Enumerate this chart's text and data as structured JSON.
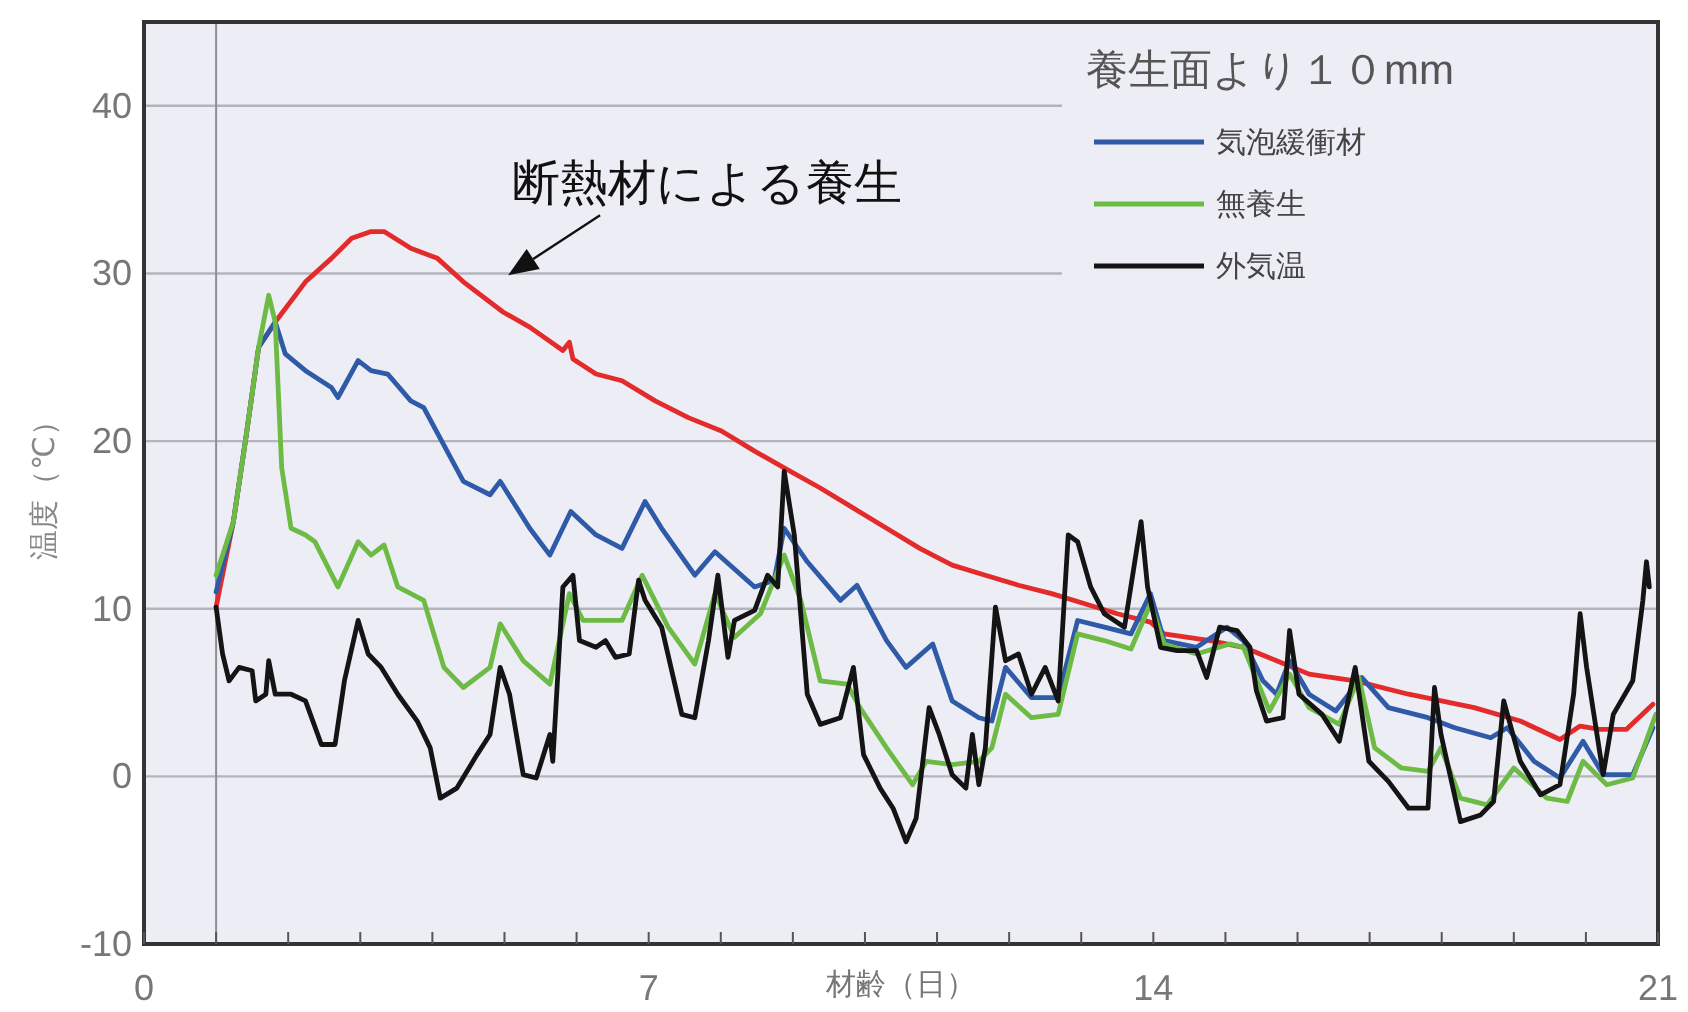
{
  "chart_data": {
    "type": "line",
    "xlabel": "材齢（日）",
    "ylabel": "温度（℃）",
    "legend_title": "養生面より１０mm",
    "annotations": [
      {
        "text": "断熱材による養生",
        "x": 5.05,
        "y": 27.5
      }
    ],
    "xlim": [
      0,
      21
    ],
    "ylim": [
      -10,
      45
    ],
    "xticks": [
      0,
      {
        "value": 1,
        "label": null
      },
      {
        "value": 2,
        "label": null
      },
      {
        "value": 3,
        "label": null
      },
      {
        "value": 4,
        "label": null
      },
      {
        "value": 5,
        "label": null
      },
      {
        "value": 6,
        "label": null
      },
      7,
      {
        "value": 8,
        "label": null
      },
      {
        "value": 9,
        "label": null
      },
      {
        "value": 10,
        "label": null
      },
      {
        "value": 11,
        "label": null
      },
      {
        "value": 12,
        "label": null
      },
      {
        "value": 13,
        "label": null
      },
      14,
      {
        "value": 15,
        "label": null
      },
      {
        "value": 16,
        "label": null
      },
      {
        "value": 17,
        "label": null
      },
      {
        "value": 18,
        "label": null
      },
      {
        "value": 19,
        "label": null
      },
      {
        "value": 20,
        "label": null
      },
      21
    ],
    "yticks": [
      -10,
      0,
      10,
      20,
      30,
      40
    ],
    "grid": "y",
    "legend": "top right",
    "line_style": "solid",
    "ref_lines": [
      {
        "axis": "x",
        "value": 1,
        "color": "#8e8e96"
      }
    ],
    "series": [
      {
        "color": "#e42b2b",
        "x": [
          1.0,
          1.24,
          1.42,
          1.59,
          1.82,
          2.24,
          2.6,
          2.88,
          3.15,
          3.33,
          3.7,
          4.07,
          4.43,
          4.98,
          5.35,
          5.81,
          5.9,
          5.95,
          6.27,
          6.63,
          7.09,
          7.55,
          8.01,
          8.47,
          8.88,
          9.38,
          9.84,
          10.3,
          10.76,
          11.21,
          11.67,
          12.13,
          12.59,
          13.05,
          13.5,
          13.96,
          14.15,
          14.79,
          15.25,
          15.71,
          16.16,
          16.8,
          17.54,
          18.45,
          19.09,
          19.64,
          19.92,
          20.19,
          20.56,
          20.93
        ],
        "values": [
          10.1,
          15.2,
          20.4,
          25.6,
          27.1,
          29.5,
          30.9,
          32.1,
          32.5,
          32.5,
          31.5,
          30.9,
          29.5,
          27.7,
          26.8,
          25.4,
          25.9,
          24.9,
          24.0,
          23.6,
          22.4,
          21.4,
          20.6,
          19.4,
          18.4,
          17.2,
          16.0,
          14.8,
          13.6,
          12.6,
          12.0,
          11.4,
          10.9,
          10.3,
          9.7,
          9.2,
          8.5,
          8.1,
          7.7,
          6.9,
          6.1,
          5.7,
          4.9,
          4.1,
          3.3,
          2.2,
          3.0,
          2.8,
          2.8,
          4.3
        ]
      },
      {
        "name": "気泡緩衝材",
        "color": "#2e5aa8",
        "x": [
          1.0,
          1.24,
          1.42,
          1.59,
          1.82,
          1.96,
          2.24,
          2.6,
          2.69,
          2.97,
          3.15,
          3.38,
          3.7,
          3.88,
          4.43,
          4.8,
          4.94,
          5.35,
          5.63,
          5.92,
          6.27,
          6.63,
          6.95,
          7.18,
          7.64,
          7.92,
          8.47,
          8.74,
          8.88,
          9.2,
          9.66,
          9.89,
          10.3,
          10.57,
          10.94,
          11.21,
          11.58,
          11.76,
          11.95,
          12.31,
          12.68,
          12.95,
          13.32,
          13.69,
          13.96,
          14.15,
          14.6,
          15.02,
          15.25,
          15.52,
          15.71,
          15.89,
          16.16,
          16.53,
          16.89,
          17.26,
          17.81,
          18.18,
          18.68,
          18.91,
          19.28,
          19.64,
          19.96,
          20.24,
          20.65,
          20.93
        ],
        "values": [
          11.0,
          15.2,
          20.4,
          25.6,
          27.1,
          25.2,
          24.2,
          23.2,
          22.6,
          24.8,
          24.2,
          24.0,
          22.4,
          22.0,
          17.6,
          16.8,
          17.6,
          14.8,
          13.2,
          15.8,
          14.4,
          13.6,
          16.4,
          14.8,
          12.0,
          13.4,
          11.3,
          11.7,
          14.8,
          12.8,
          10.5,
          11.4,
          8.1,
          6.5,
          7.9,
          4.5,
          3.5,
          3.3,
          6.5,
          4.7,
          4.7,
          9.3,
          8.9,
          8.5,
          10.9,
          8.1,
          7.7,
          8.9,
          8.1,
          5.7,
          4.9,
          6.9,
          4.9,
          3.9,
          5.9,
          4.1,
          3.5,
          2.9,
          2.3,
          2.9,
          0.9,
          -0.1,
          2.1,
          0.1,
          0.1,
          2.9
        ]
      },
      {
        "name": "無養生",
        "color": "#6dbb45",
        "x": [
          1.0,
          1.24,
          1.42,
          1.59,
          1.73,
          1.82,
          1.91,
          2.04,
          2.24,
          2.37,
          2.69,
          2.97,
          3.15,
          3.33,
          3.52,
          3.88,
          4.16,
          4.43,
          4.8,
          4.94,
          5.26,
          5.63,
          5.9,
          6.09,
          6.27,
          6.63,
          6.91,
          7.27,
          7.64,
          7.92,
          8.19,
          8.55,
          8.88,
          9.11,
          9.38,
          9.75,
          9.93,
          10.3,
          10.66,
          10.85,
          11.21,
          11.58,
          11.76,
          11.95,
          12.31,
          12.68,
          12.95,
          13.32,
          13.69,
          13.96,
          14.15,
          14.6,
          15.06,
          15.25,
          15.61,
          15.89,
          16.16,
          16.58,
          16.85,
          17.07,
          17.44,
          17.81,
          17.99,
          18.26,
          18.63,
          19.0,
          19.46,
          19.74,
          19.96,
          20.29,
          20.65,
          20.97
        ],
        "values": [
          12.0,
          15.2,
          20.4,
          25.6,
          28.7,
          27.1,
          18.4,
          14.8,
          14.4,
          14.0,
          11.3,
          14.0,
          13.2,
          13.8,
          11.3,
          10.5,
          6.5,
          5.3,
          6.5,
          9.1,
          6.9,
          5.5,
          10.9,
          9.3,
          9.3,
          9.3,
          12.0,
          8.9,
          6.7,
          10.9,
          8.3,
          9.7,
          13.2,
          10.5,
          5.7,
          5.5,
          4.1,
          1.7,
          -0.5,
          0.9,
          0.7,
          0.9,
          1.7,
          4.9,
          3.5,
          3.7,
          8.5,
          8.1,
          7.6,
          10.3,
          7.9,
          7.3,
          7.9,
          7.7,
          3.9,
          6.1,
          4.1,
          3.1,
          5.9,
          1.7,
          0.5,
          0.3,
          1.7,
          -1.3,
          -1.7,
          0.5,
          -1.3,
          -1.5,
          0.9,
          -0.5,
          -0.1,
          3.7
        ]
      },
      {
        "name": "外気温",
        "color": "#141414",
        "x": [
          1.0,
          1.09,
          1.18,
          1.32,
          1.5,
          1.55,
          1.69,
          1.73,
          1.82,
          2.04,
          2.24,
          2.46,
          2.65,
          2.78,
          2.97,
          3.11,
          3.29,
          3.52,
          3.79,
          3.97,
          4.11,
          4.34,
          4.62,
          4.8,
          4.94,
          5.07,
          5.26,
          5.44,
          5.63,
          5.67,
          5.81,
          5.95,
          6.04,
          6.27,
          6.4,
          6.54,
          6.73,
          6.86,
          6.95,
          7.18,
          7.46,
          7.64,
          7.83,
          7.96,
          8.1,
          8.19,
          8.47,
          8.65,
          8.79,
          8.88,
          9.02,
          9.2,
          9.38,
          9.66,
          9.84,
          9.98,
          10.21,
          10.39,
          10.57,
          10.71,
          10.89,
          11.03,
          11.21,
          11.4,
          11.49,
          11.58,
          11.67,
          11.81,
          11.95,
          12.13,
          12.31,
          12.5,
          12.68,
          12.82,
          12.95,
          13.13,
          13.32,
          13.6,
          13.83,
          13.92,
          14.1,
          14.33,
          14.6,
          14.74,
          14.92,
          15.16,
          15.34,
          15.43,
          15.57,
          15.8,
          15.89,
          16.02,
          16.34,
          16.58,
          16.8,
          16.99,
          17.26,
          17.54,
          17.81,
          17.9,
          17.99,
          18.26,
          18.54,
          18.72,
          18.86,
          19.09,
          19.37,
          19.64,
          19.83,
          19.92,
          20.01,
          20.24,
          20.38,
          20.65,
          20.79,
          20.84,
          20.88
        ],
        "values": [
          10.1,
          7.3,
          5.7,
          6.5,
          6.3,
          4.5,
          4.9,
          6.9,
          4.9,
          4.9,
          4.5,
          1.9,
          1.9,
          5.7,
          9.3,
          7.3,
          6.5,
          4.9,
          3.3,
          1.7,
          -1.3,
          -0.7,
          1.3,
          2.5,
          6.5,
          4.9,
          0.1,
          -0.1,
          2.5,
          0.9,
          11.3,
          12.0,
          8.1,
          7.7,
          8.1,
          7.1,
          7.3,
          11.7,
          10.5,
          8.9,
          3.7,
          3.5,
          8.1,
          12.0,
          7.1,
          9.3,
          9.9,
          12.0,
          11.3,
          18.2,
          14.4,
          4.9,
          3.1,
          3.5,
          6.5,
          1.3,
          -0.7,
          -1.9,
          -3.9,
          -2.5,
          4.1,
          2.5,
          0.1,
          -0.7,
          2.5,
          -0.5,
          1.7,
          10.1,
          6.9,
          7.3,
          4.9,
          6.5,
          4.5,
          14.4,
          14.0,
          11.3,
          9.7,
          8.9,
          15.2,
          11.3,
          7.7,
          7.5,
          7.5,
          5.9,
          8.9,
          8.7,
          7.7,
          5.1,
          3.3,
          3.5,
          8.7,
          4.9,
          3.7,
          2.1,
          6.5,
          0.9,
          -0.3,
          -1.9,
          -1.9,
          5.3,
          2.5,
          -2.7,
          -2.3,
          -1.5,
          4.5,
          0.9,
          -1.1,
          -0.5,
          4.9,
          9.7,
          6.5,
          0.1,
          3.7,
          5.7,
          10.5,
          12.8,
          11.3
        ]
      }
    ]
  }
}
